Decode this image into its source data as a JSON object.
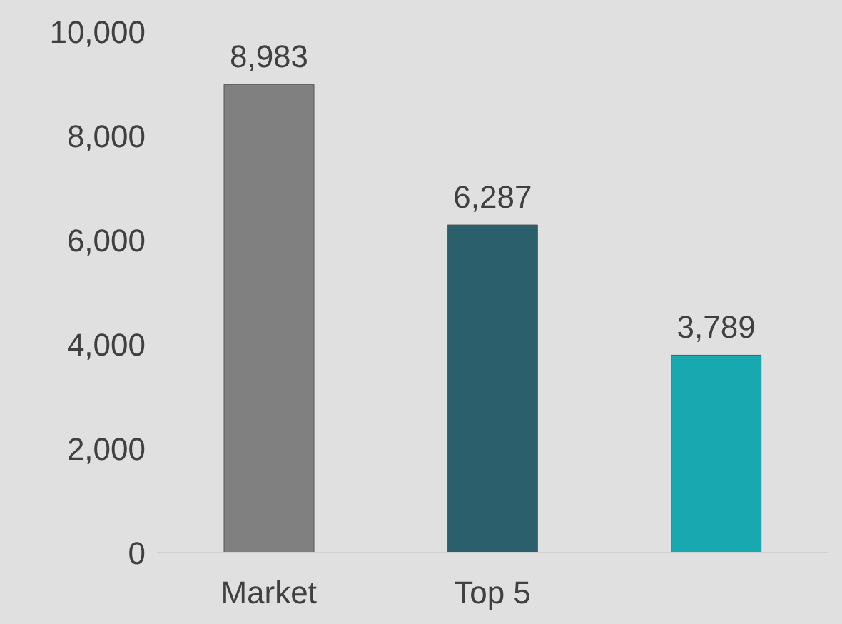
{
  "chart_data": {
    "type": "bar",
    "categories": [
      "Market",
      "Top 5",
      null
    ],
    "values": [
      8983,
      6287,
      3789
    ],
    "colors": [
      "#808080",
      "#2a5f6b",
      "#17a8b0"
    ],
    "ylim": [
      0,
      10000
    ],
    "yticks": [
      {
        "value": 0,
        "label": "0"
      },
      {
        "value": 2000,
        "label": "2,000"
      },
      {
        "value": 4000,
        "label": "4,000"
      },
      {
        "value": 6000,
        "label": "6,000"
      },
      {
        "value": 8000,
        "label": "8,000"
      },
      {
        "value": 10000,
        "label": "10,000"
      }
    ],
    "grid": false,
    "value_labels": [
      "8,983",
      "6,287",
      "3,789"
    ]
  }
}
